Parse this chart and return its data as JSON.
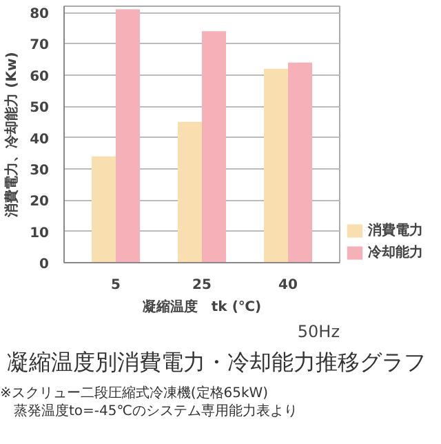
{
  "chart_data": {
    "type": "bar",
    "title": "凝縮温度別消費電力・冷却能力推移グラフ",
    "xlabel": "凝縮温度　tk (℃)",
    "ylabel": "消費電力、冷却能力 (Kw)",
    "categories": [
      "5",
      "25",
      "40"
    ],
    "series": [
      {
        "name": "消費電力",
        "color": "#f9dfb0",
        "values": [
          34,
          45,
          62
        ]
      },
      {
        "name": "冷却能力",
        "color": "#f5b0b8",
        "values": [
          81,
          74,
          64
        ]
      }
    ],
    "ylim": [
      0,
      82
    ],
    "yticks": [
      0,
      10,
      20,
      30,
      40,
      50,
      60,
      70,
      80
    ],
    "grid": "y",
    "legend": "bottom right",
    "annotations": [
      "50Hz",
      "※スクリュー二段圧縮式冷凍機(定格65kW)",
      "蒸発温度to=-45℃のシステム専用能力表より"
    ]
  }
}
